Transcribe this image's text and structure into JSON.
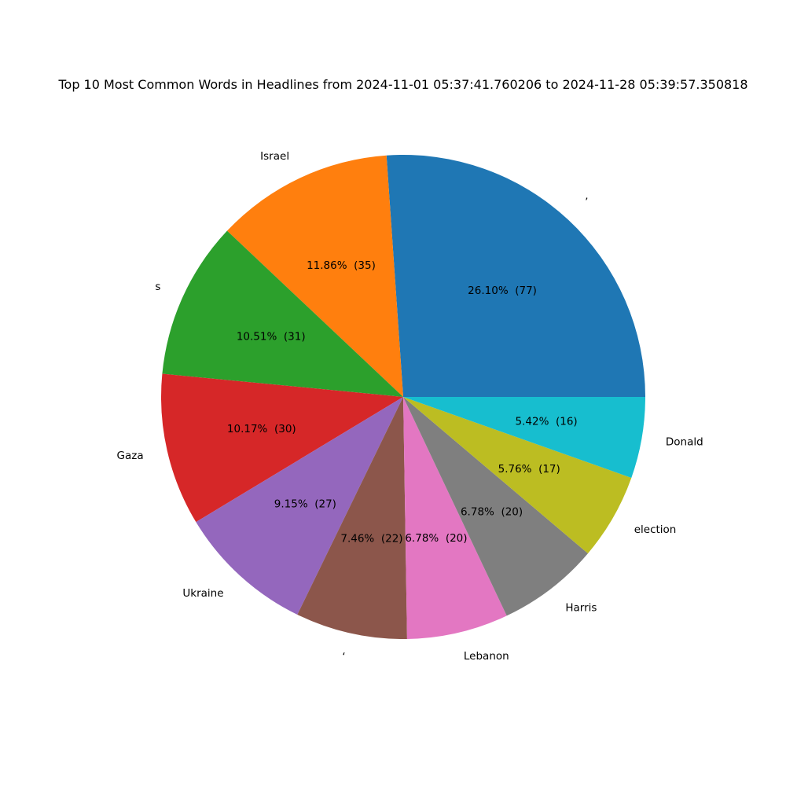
{
  "chart_data": {
    "type": "pie",
    "title": "Top 10 Most Common Words in Headlines from 2024-11-01 05:37:41.760206 to 2024-11-28 05:39:57.350818",
    "start_angle_deg": 0,
    "direction": "counterclockwise",
    "slices": [
      {
        "label": "’",
        "value": 77,
        "pct_label": "26.10%  (77)",
        "color": "#1f77b4"
      },
      {
        "label": "Israel",
        "value": 35,
        "pct_label": "11.86%  (35)",
        "color": "#ff7f0e"
      },
      {
        "label": "s",
        "value": 31,
        "pct_label": "10.51%  (31)",
        "color": "#2ca02c"
      },
      {
        "label": "Gaza",
        "value": 30,
        "pct_label": "10.17%  (30)",
        "color": "#d62728"
      },
      {
        "label": "Ukraine",
        "value": 27,
        "pct_label": "9.15%  (27)",
        "color": "#9467bd"
      },
      {
        "label": "‘",
        "value": 22,
        "pct_label": "7.46%  (22)",
        "color": "#8c564b"
      },
      {
        "label": "Lebanon",
        "value": 20,
        "pct_label": "6.78%  (20)",
        "color": "#e377c2"
      },
      {
        "label": "Harris",
        "value": 20,
        "pct_label": "6.78%  (20)",
        "color": "#7f7f7f"
      },
      {
        "label": "election",
        "value": 17,
        "pct_label": "5.76%  (17)",
        "color": "#bcbd22"
      },
      {
        "label": "Donald",
        "value": 16,
        "pct_label": "5.42%  (16)",
        "color": "#17becf"
      }
    ]
  }
}
